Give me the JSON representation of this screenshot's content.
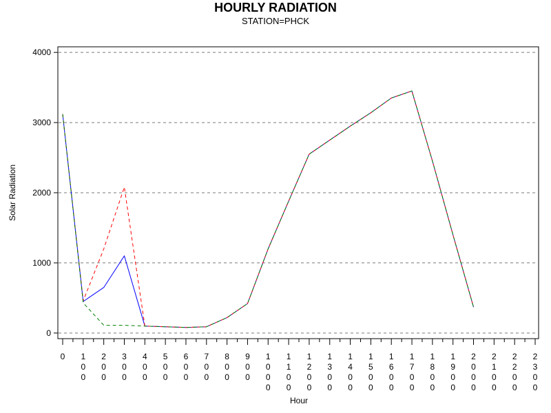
{
  "chart_data": {
    "type": "line",
    "title": "HOURLY RADIATION",
    "subtitle": "STATION=PHCK",
    "xlabel": "Hour",
    "ylabel": "Solar Radiation",
    "x_ticks": [
      "0",
      "100",
      "200",
      "300",
      "400",
      "500",
      "600",
      "700",
      "800",
      "900",
      "1000",
      "1100",
      "1200",
      "1300",
      "1400",
      "1500",
      "1600",
      "1700",
      "1800",
      "1900",
      "2000",
      "2100",
      "2200",
      "2300"
    ],
    "y_ticks": [
      0,
      1000,
      2000,
      3000,
      4000
    ],
    "xlim": [
      0,
      2300
    ],
    "ylim": [
      -80,
      4080
    ],
    "grid": "horizontal dashed",
    "legend": "none",
    "series": [
      {
        "color": "#0000ff",
        "dash": "solid",
        "points": [
          [
            0,
            3120
          ],
          [
            100,
            450
          ],
          [
            200,
            650
          ],
          [
            300,
            1100
          ],
          [
            400,
            100
          ],
          [
            500,
            90
          ],
          [
            600,
            80
          ],
          [
            700,
            90
          ],
          [
            800,
            220
          ],
          [
            900,
            420
          ],
          [
            1000,
            1200
          ],
          [
            1100,
            1880
          ],
          [
            1200,
            2550
          ],
          [
            1300,
            2750
          ],
          [
            1400,
            2950
          ],
          [
            1500,
            3140
          ],
          [
            1600,
            3350
          ],
          [
            1700,
            3450
          ],
          [
            1800,
            2450
          ],
          [
            1900,
            1400
          ],
          [
            2000,
            370
          ]
        ]
      },
      {
        "color": "#ff0000",
        "dash": "dashed",
        "points": [
          [
            0,
            3120
          ],
          [
            100,
            460
          ],
          [
            200,
            1200
          ],
          [
            300,
            2080
          ],
          [
            400,
            100
          ],
          [
            500,
            90
          ],
          [
            600,
            80
          ],
          [
            700,
            90
          ],
          [
            800,
            220
          ],
          [
            900,
            420
          ],
          [
            1000,
            1200
          ],
          [
            1100,
            1880
          ],
          [
            1200,
            2550
          ],
          [
            1300,
            2750
          ],
          [
            1400,
            2950
          ],
          [
            1500,
            3140
          ],
          [
            1600,
            3350
          ],
          [
            1700,
            3450
          ],
          [
            1800,
            2450
          ],
          [
            1900,
            1400
          ],
          [
            2000,
            370
          ]
        ]
      },
      {
        "color": "#008000",
        "dash": "dashed",
        "points": [
          [
            0,
            3120
          ],
          [
            100,
            430
          ],
          [
            200,
            110
          ],
          [
            300,
            110
          ],
          [
            400,
            100
          ],
          [
            500,
            90
          ],
          [
            600,
            80
          ],
          [
            700,
            90
          ],
          [
            800,
            220
          ],
          [
            900,
            420
          ],
          [
            1000,
            1200
          ],
          [
            1100,
            1880
          ],
          [
            1200,
            2550
          ],
          [
            1300,
            2750
          ],
          [
            1400,
            2950
          ],
          [
            1500,
            3140
          ],
          [
            1600,
            3350
          ],
          [
            1700,
            3450
          ],
          [
            1800,
            2450
          ],
          [
            1900,
            1400
          ],
          [
            2000,
            370
          ]
        ]
      }
    ]
  }
}
